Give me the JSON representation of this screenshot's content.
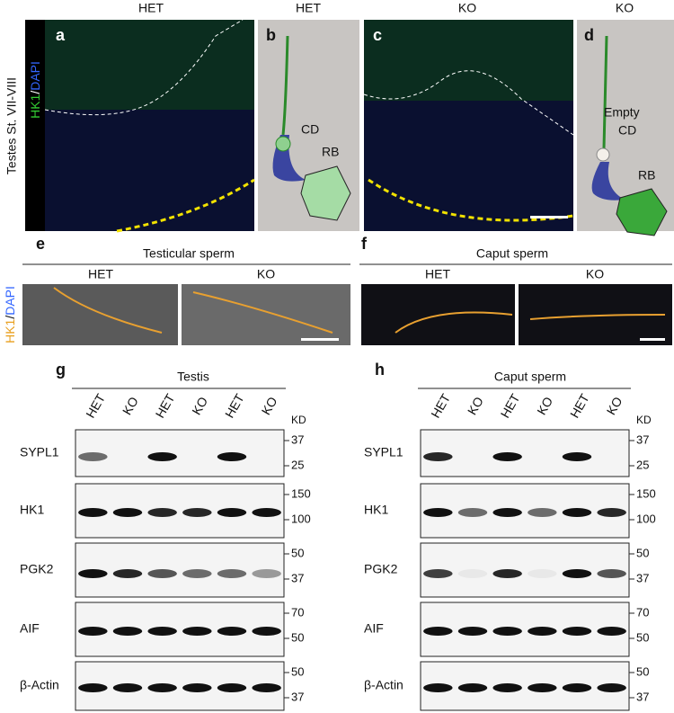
{
  "panels": {
    "a": {
      "label": "a",
      "title": "HET",
      "side_label": "Testes St. VII-VIII",
      "stain": [
        "HK1",
        "/",
        "DAPI"
      ]
    },
    "b": {
      "label": "b",
      "title": "HET",
      "cd": "CD",
      "rb": "RB"
    },
    "c": {
      "label": "c",
      "title": "KO"
    },
    "d": {
      "label": "d",
      "title": "KO",
      "cd": [
        "Empty",
        "CD"
      ],
      "rb": "RB"
    },
    "e": {
      "label": "e",
      "title": "Testicular sperm",
      "columns": [
        "HET",
        "KO"
      ],
      "stain": [
        "HK1",
        "/",
        "DAPI"
      ]
    },
    "f": {
      "label": "f",
      "title": "Caput sperm",
      "columns": [
        "HET",
        "KO"
      ]
    },
    "g": {
      "label": "g",
      "title": "Testis",
      "lanes": [
        "HET",
        "KO",
        "HET",
        "KO",
        "HET",
        "KO"
      ],
      "unit": "KD",
      "blots": [
        {
          "name": "SYPL1",
          "markers": [
            "37",
            "25"
          ]
        },
        {
          "name": "HK1",
          "markers": [
            "150",
            "100"
          ]
        },
        {
          "name": "PGK2",
          "markers": [
            "50",
            "37"
          ]
        },
        {
          "name": "AIF",
          "markers": [
            "70",
            "50"
          ]
        },
        {
          "name": "β-Actin",
          "markers": [
            "50",
            "37"
          ]
        }
      ]
    },
    "h": {
      "label": "h",
      "title": "Caput sperm",
      "lanes": [
        "HET",
        "KO",
        "HET",
        "KO",
        "HET",
        "KO"
      ],
      "unit": "KD",
      "blots": [
        {
          "name": "SYPL1",
          "markers": [
            "37",
            "25"
          ]
        },
        {
          "name": "HK1",
          "markers": [
            "150",
            "100"
          ]
        },
        {
          "name": "PGK2",
          "markers": [
            "50",
            "37"
          ]
        },
        {
          "name": "AIF",
          "markers": [
            "70",
            "50"
          ]
        },
        {
          "name": "β-Actin",
          "markers": [
            "50",
            "37"
          ]
        }
      ]
    }
  }
}
